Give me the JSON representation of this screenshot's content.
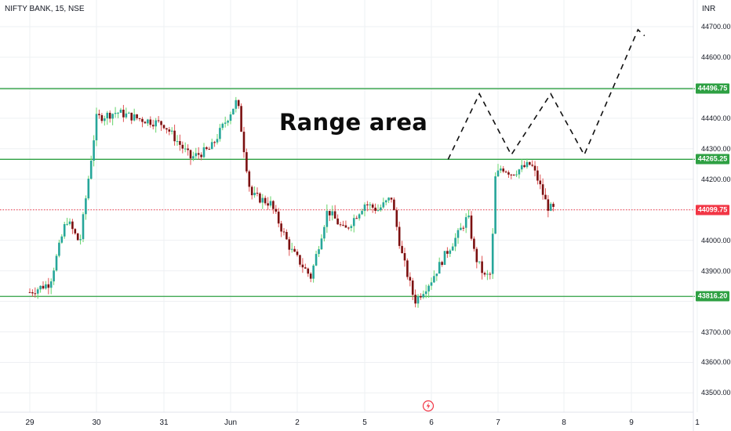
{
  "header": {
    "symbol_label": "NIFTY BANK, 15, NSE",
    "currency": "INR"
  },
  "annotation": {
    "text": "Range area"
  },
  "colors": {
    "up": "#26a69a",
    "down": "#7b1010",
    "wick_up": "#63d46a",
    "wick_down": "#e05252",
    "level": "#2ea043",
    "last_price": "#f23645",
    "dashed_path": "#111111",
    "grid": "#eef0f3"
  },
  "chart_data": {
    "type": "candlestick",
    "title": "NIFTY BANK, 15, NSE",
    "ylabel": "INR",
    "ylim": [
      43460,
      44755
    ],
    "y_ticks": [
      "44700.00",
      "44600.00",
      "44400.00",
      "44300.00",
      "44200.00",
      "44000.00",
      "43900.00",
      "43700.00",
      "43600.00",
      "43500.00"
    ],
    "x_ticks": [
      "29",
      "30",
      "31",
      "Jun",
      "2",
      "5",
      "6",
      "7",
      "8",
      "9",
      "1"
    ],
    "levels": [
      {
        "value": 44496.75,
        "label": "44496.75",
        "kind": "resistance"
      },
      {
        "value": 44265.25,
        "label": "44265.25",
        "kind": "range-bottom"
      },
      {
        "value": 44099.75,
        "label": "44099.75",
        "kind": "last-price"
      },
      {
        "value": 43816.2,
        "label": "43816.20",
        "kind": "support"
      }
    ],
    "projection_path": [
      {
        "t": 6.25,
        "v": 44265
      },
      {
        "t": 6.72,
        "v": 44480
      },
      {
        "t": 7.2,
        "v": 44280
      },
      {
        "t": 7.8,
        "v": 44480
      },
      {
        "t": 8.3,
        "v": 44280
      },
      {
        "t": 9.1,
        "v": 44690
      },
      {
        "t": 9.2,
        "v": 44670
      }
    ],
    "candle_anchors": [
      [
        0.0,
        43830
      ],
      [
        0.3,
        43860
      ],
      [
        0.55,
        44070
      ],
      [
        0.75,
        43990
      ],
      [
        1.0,
        44400
      ],
      [
        1.3,
        44420
      ],
      [
        1.6,
        44400
      ],
      [
        2.0,
        44380
      ],
      [
        2.4,
        44270
      ],
      [
        2.7,
        44300
      ],
      [
        3.0,
        44420
      ],
      [
        3.1,
        44460
      ],
      [
        3.2,
        44300
      ],
      [
        3.3,
        44150
      ],
      [
        3.6,
        44120
      ],
      [
        3.9,
        43970
      ],
      [
        4.2,
        43880
      ],
      [
        4.45,
        44100
      ],
      [
        4.7,
        44030
      ],
      [
        5.0,
        44120
      ],
      [
        5.2,
        44100
      ],
      [
        5.4,
        44140
      ],
      [
        5.55,
        43960
      ],
      [
        5.75,
        43800
      ],
      [
        6.0,
        43870
      ],
      [
        6.2,
        43950
      ],
      [
        6.4,
        44020
      ],
      [
        6.55,
        44080
      ],
      [
        6.65,
        43950
      ],
      [
        6.8,
        43880
      ],
      [
        6.9,
        43890
      ],
      [
        6.95,
        44200
      ],
      [
        7.05,
        44240
      ],
      [
        7.2,
        44220
      ],
      [
        7.5,
        44250
      ],
      [
        7.6,
        44200
      ],
      [
        7.75,
        44110
      ],
      [
        7.85,
        44100
      ]
    ]
  }
}
